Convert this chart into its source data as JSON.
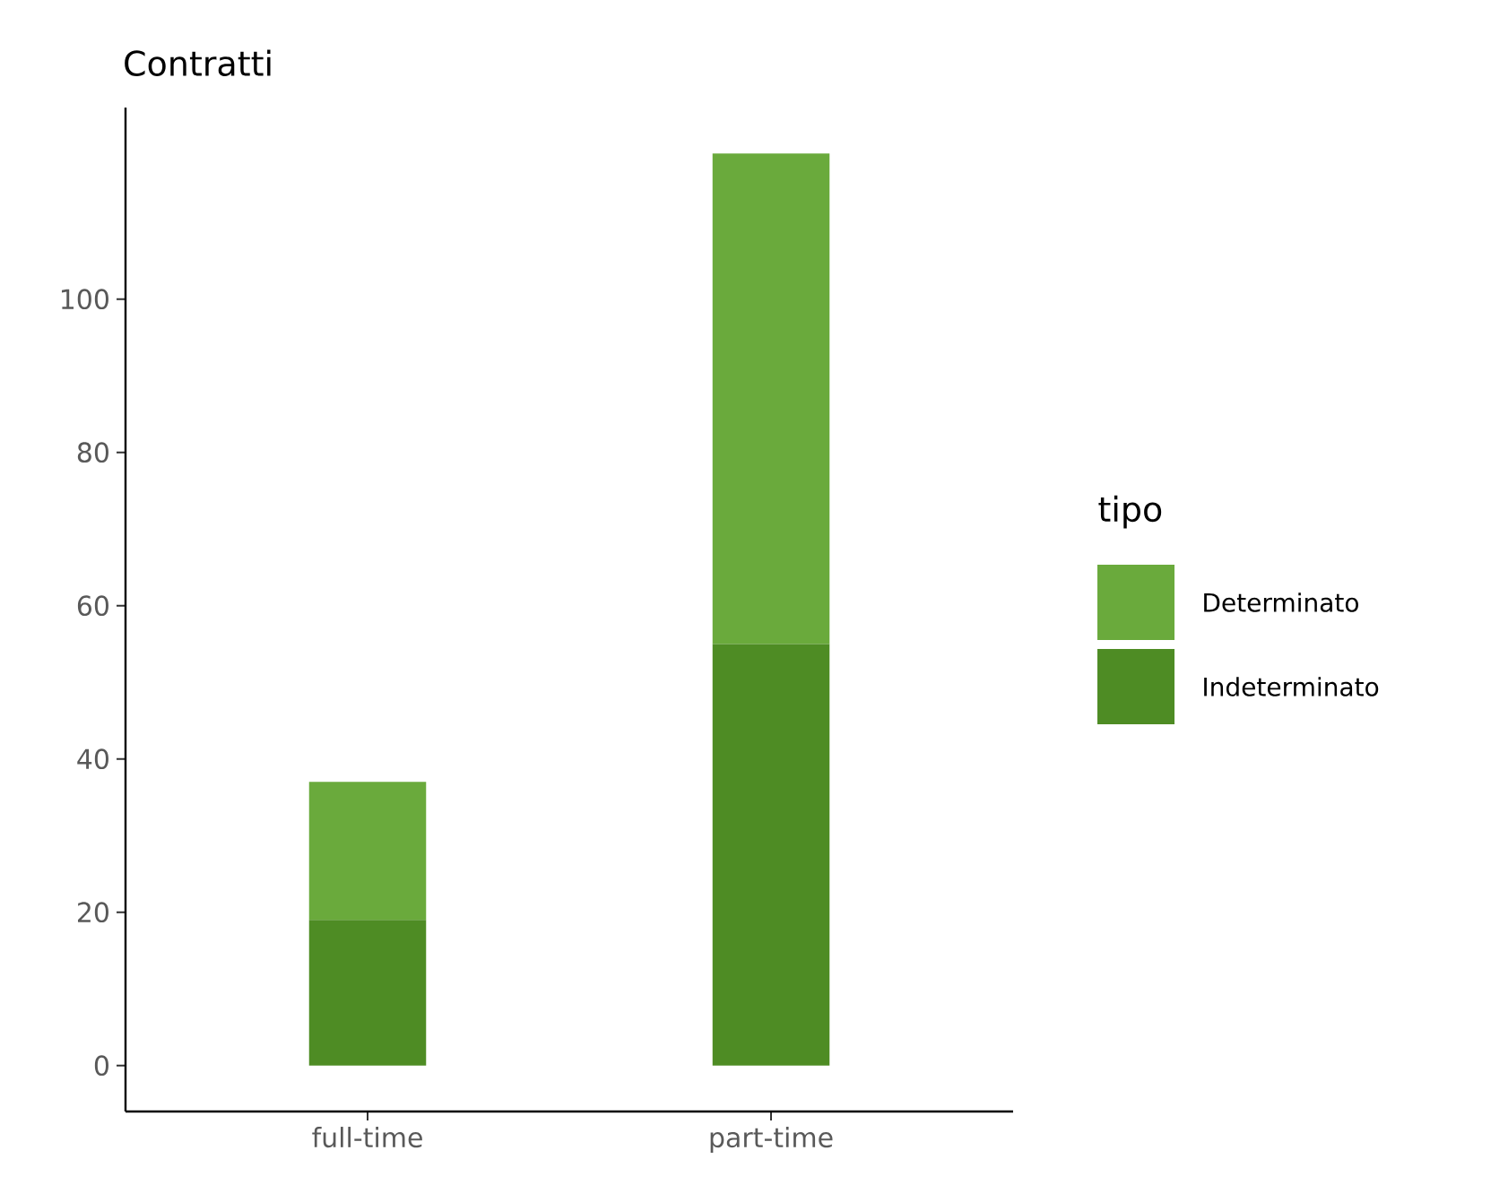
{
  "chart_data": {
    "type": "bar",
    "stacked": true,
    "title": "Contratti",
    "legend_title": "tipo",
    "categories": [
      "full-time",
      "part-time"
    ],
    "series": [
      {
        "name": "Indeterminato",
        "color": "#4e8c24",
        "values": [
          19,
          55
        ]
      },
      {
        "name": "Determinato",
        "color": "#6aaa3c",
        "values": [
          18,
          64
        ]
      }
    ],
    "ylim": [
      -6,
      125
    ],
    "yticks": [
      0,
      20,
      40,
      60,
      80,
      100
    ],
    "grid": false,
    "legend": "right"
  }
}
